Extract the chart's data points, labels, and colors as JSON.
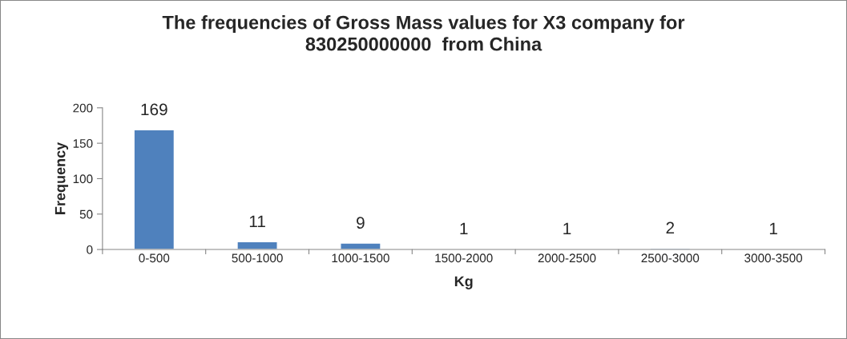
{
  "chart_data": {
    "type": "bar",
    "title": "The frequencies of Gross Mass values for X3 company for\n830250000000  from China",
    "xlabel": "Kg",
    "ylabel": "Frequency",
    "categories": [
      "0-500",
      "500-1000",
      "1000-1500",
      "1500-2000",
      "2000-2500",
      "2500-3000",
      "3000-3500"
    ],
    "values": [
      169,
      11,
      9,
      1,
      1,
      2,
      1
    ],
    "color": "#4f81bd",
    "ylim": [
      0,
      200
    ],
    "yticks": [
      0,
      50,
      100,
      150,
      200
    ],
    "grid": false,
    "data_labels": true
  }
}
